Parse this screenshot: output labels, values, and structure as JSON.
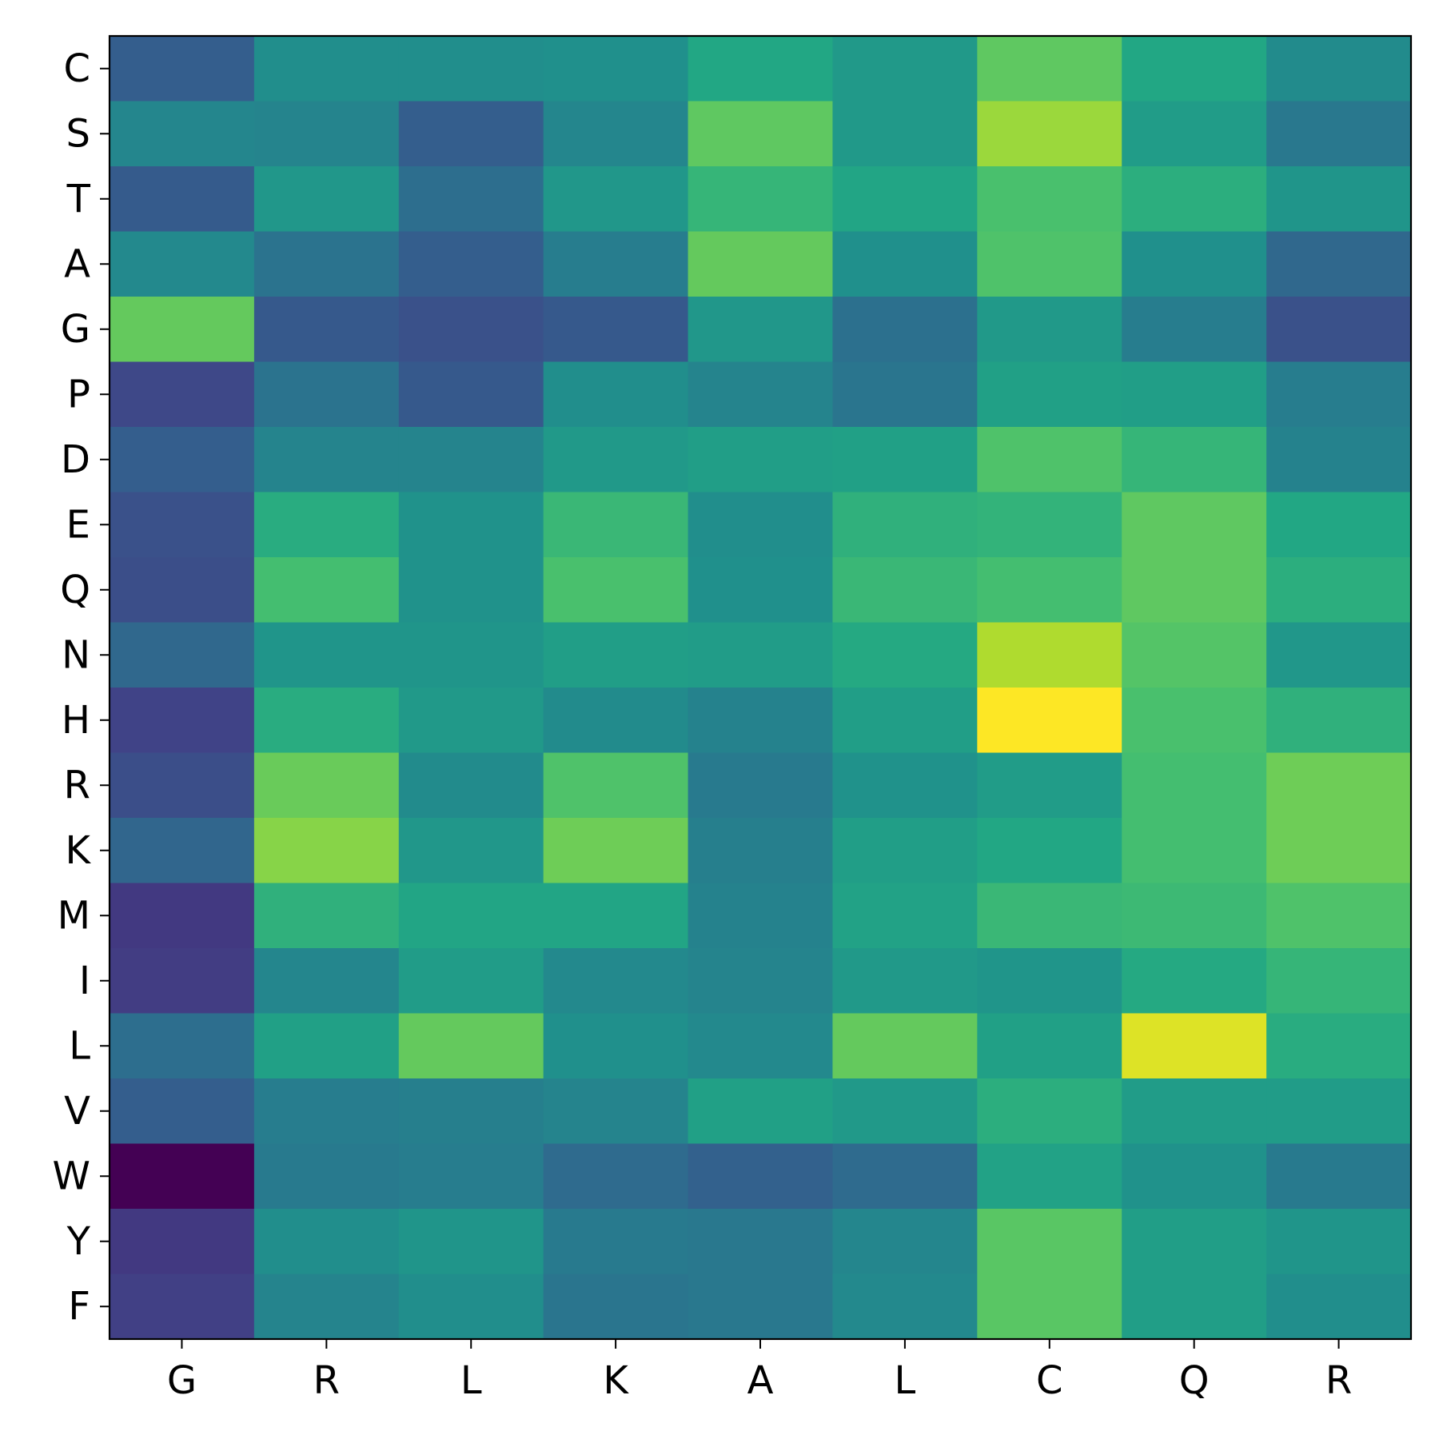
{
  "chart_data": {
    "type": "heatmap",
    "title": "",
    "xlabel": "",
    "ylabel": "",
    "x_categories": [
      "G",
      "R",
      "L",
      "K",
      "A",
      "L",
      "C",
      "Q",
      "R"
    ],
    "y_categories": [
      "C",
      "S",
      "T",
      "A",
      "G",
      "P",
      "D",
      "E",
      "Q",
      "N",
      "H",
      "R",
      "K",
      "M",
      "I",
      "L",
      "V",
      "W",
      "Y",
      "F"
    ],
    "colormap": "viridis",
    "colorbar": false,
    "grid": false,
    "value_range": [
      0,
      1
    ],
    "values": [
      [
        0.3,
        0.49,
        0.49,
        0.5,
        0.6,
        0.54,
        0.75,
        0.6,
        0.48
      ],
      [
        0.46,
        0.45,
        0.3,
        0.46,
        0.75,
        0.54,
        0.85,
        0.55,
        0.4
      ],
      [
        0.29,
        0.53,
        0.36,
        0.53,
        0.66,
        0.59,
        0.71,
        0.63,
        0.52
      ],
      [
        0.47,
        0.38,
        0.3,
        0.42,
        0.76,
        0.5,
        0.72,
        0.5,
        0.34
      ],
      [
        0.76,
        0.28,
        0.25,
        0.28,
        0.53,
        0.37,
        0.54,
        0.42,
        0.25
      ],
      [
        0.22,
        0.38,
        0.28,
        0.49,
        0.45,
        0.39,
        0.57,
        0.56,
        0.42
      ],
      [
        0.3,
        0.45,
        0.45,
        0.54,
        0.56,
        0.57,
        0.72,
        0.66,
        0.44
      ],
      [
        0.25,
        0.62,
        0.51,
        0.67,
        0.49,
        0.64,
        0.65,
        0.75,
        0.6
      ],
      [
        0.24,
        0.7,
        0.51,
        0.71,
        0.5,
        0.67,
        0.7,
        0.75,
        0.63
      ],
      [
        0.34,
        0.52,
        0.52,
        0.56,
        0.55,
        0.61,
        0.88,
        0.73,
        0.53
      ],
      [
        0.2,
        0.62,
        0.54,
        0.48,
        0.44,
        0.56,
        1.0,
        0.71,
        0.64
      ],
      [
        0.24,
        0.77,
        0.48,
        0.72,
        0.41,
        0.51,
        0.55,
        0.7,
        0.78
      ],
      [
        0.33,
        0.82,
        0.53,
        0.78,
        0.43,
        0.56,
        0.6,
        0.7,
        0.78
      ],
      [
        0.17,
        0.64,
        0.59,
        0.59,
        0.44,
        0.58,
        0.67,
        0.68,
        0.72
      ],
      [
        0.18,
        0.46,
        0.55,
        0.47,
        0.45,
        0.54,
        0.52,
        0.61,
        0.66
      ],
      [
        0.36,
        0.57,
        0.76,
        0.5,
        0.47,
        0.76,
        0.57,
        0.95,
        0.62
      ],
      [
        0.3,
        0.42,
        0.43,
        0.45,
        0.57,
        0.54,
        0.63,
        0.55,
        0.55
      ],
      [
        0.0,
        0.41,
        0.42,
        0.35,
        0.31,
        0.35,
        0.58,
        0.51,
        0.41
      ],
      [
        0.17,
        0.49,
        0.52,
        0.41,
        0.4,
        0.46,
        0.74,
        0.56,
        0.52
      ],
      [
        0.19,
        0.45,
        0.49,
        0.39,
        0.4,
        0.47,
        0.74,
        0.56,
        0.49
      ]
    ]
  }
}
